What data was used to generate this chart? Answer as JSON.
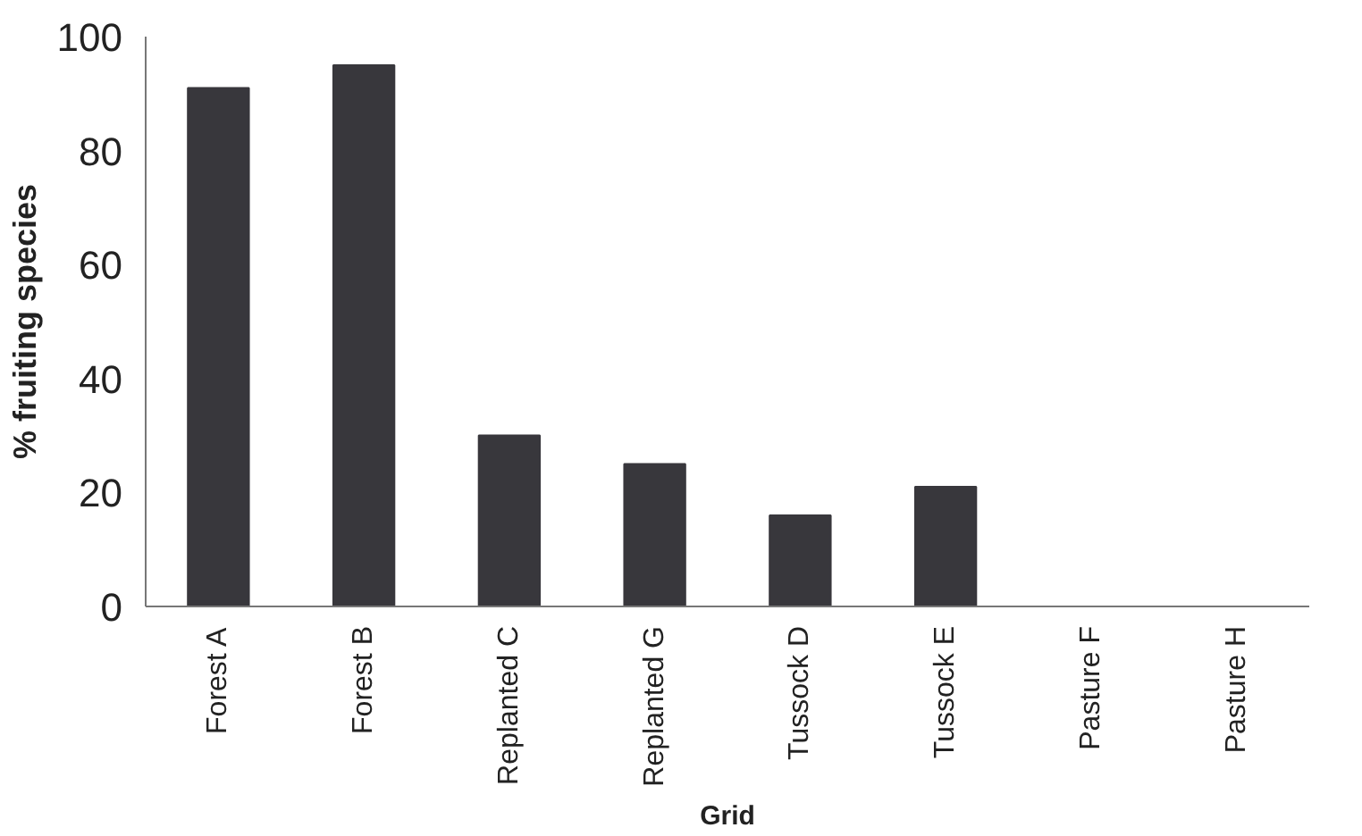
{
  "chart_data": {
    "type": "bar",
    "xlabel": "Grid",
    "ylabel": "% fruiting species",
    "categories": [
      "Forest A",
      "Forest B",
      "Replanted C",
      "Replanted G",
      "Tussock D",
      "Tussock E",
      "Pasture F",
      "Pasture H"
    ],
    "values": [
      91,
      95,
      30,
      25,
      16,
      21,
      0,
      0
    ],
    "color": "#38373c",
    "ylim": [
      0,
      100
    ],
    "yticks": [
      0,
      20,
      40,
      60,
      80,
      100
    ],
    "grid": false
  }
}
